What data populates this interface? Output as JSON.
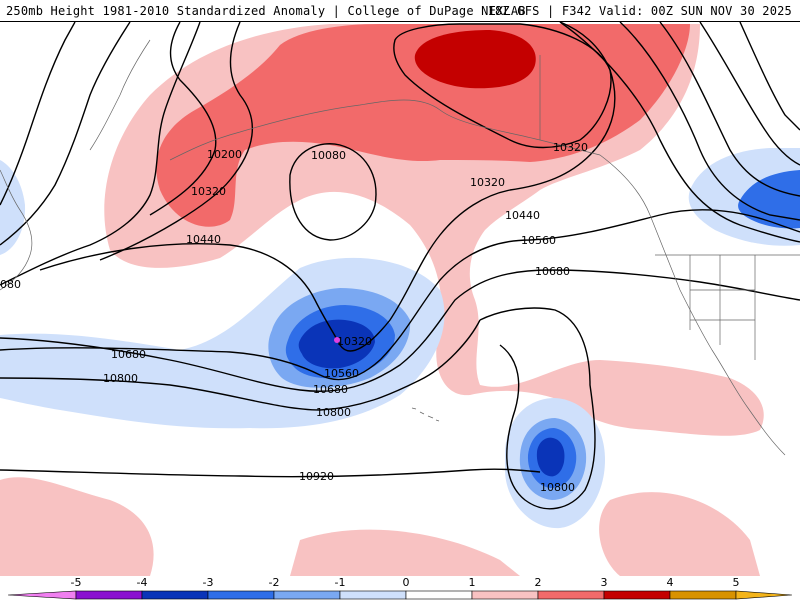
{
  "header": {
    "title_left": "250mb Height 1981-2010 Standardized Anomaly | College of DuPage NEXLAB",
    "title_right": "18Z GFS | F342 Valid: 00Z SUN NOV 30 2025"
  },
  "colors": {
    "neg5": "#f07ff0",
    "neg4": "#8a10d0",
    "neg3": "#0a34b8",
    "neg2": "#2f6ee8",
    "neg1": "#7aa8f2",
    "neg0": "#cfe0fb",
    "pos0": "#ffffff",
    "pos1": "#f8c2c2",
    "pos2": "#f26a6a",
    "pos3": "#c40000",
    "pos4": "#d89200",
    "pos5": "#f4b41a"
  },
  "contours": {
    "labels": [
      {
        "id": "c1",
        "text": "10200"
      },
      {
        "id": "c2",
        "text": "10080"
      },
      {
        "id": "c3",
        "text": "10320"
      },
      {
        "id": "c4",
        "text": "10440"
      },
      {
        "id": "c5",
        "text": "10320"
      },
      {
        "id": "c6",
        "text": "10320"
      },
      {
        "id": "c7",
        "text": "10440"
      },
      {
        "id": "c8",
        "text": "10560"
      },
      {
        "id": "c9",
        "text": "10680"
      },
      {
        "id": "c10",
        "text": "10680"
      },
      {
        "id": "c11",
        "text": "10800"
      },
      {
        "id": "c12",
        "text": "10320"
      },
      {
        "id": "c13",
        "text": "10560"
      },
      {
        "id": "c14",
        "text": "10680"
      },
      {
        "id": "c15",
        "text": "10800"
      },
      {
        "id": "c16",
        "text": "10920"
      },
      {
        "id": "c17",
        "text": "10800"
      },
      {
        "id": "c18",
        "text": "080"
      }
    ]
  },
  "legend": {
    "ticks": [
      "-5",
      "-4",
      "-3",
      "-2",
      "-1",
      "0",
      "1",
      "2",
      "3",
      "4",
      "5"
    ]
  }
}
